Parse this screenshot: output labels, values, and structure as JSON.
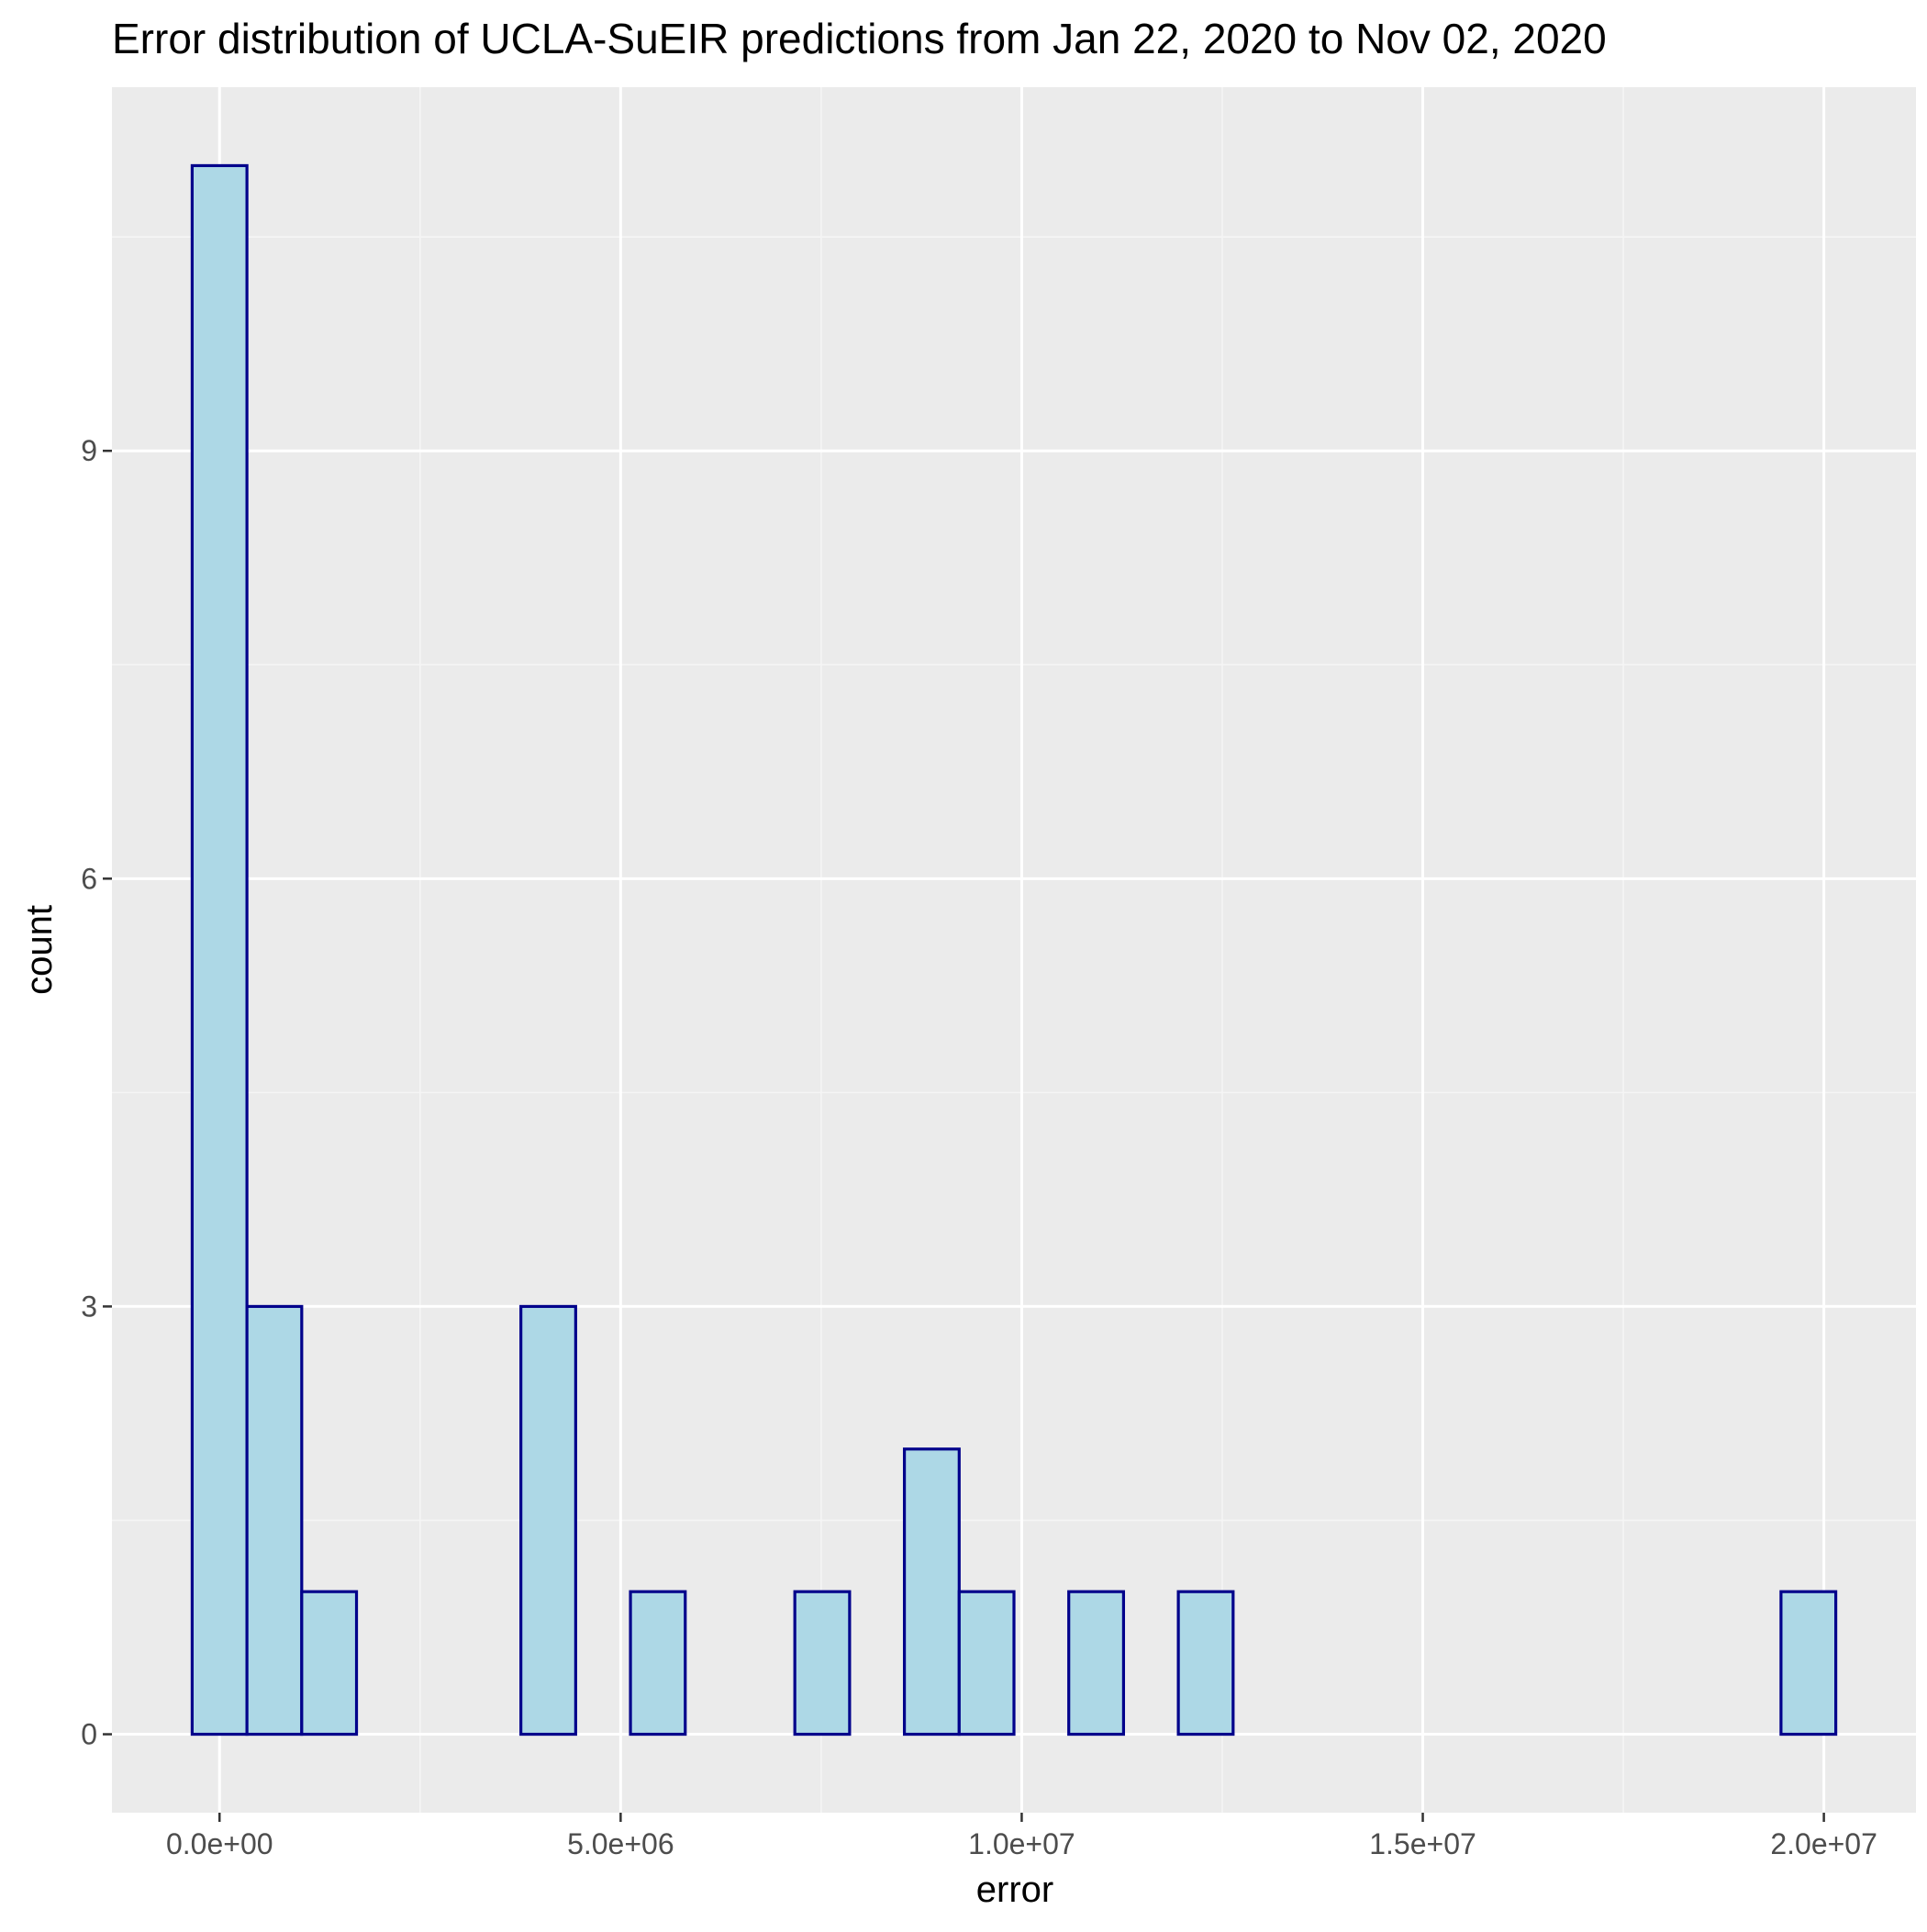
{
  "chart_data": {
    "type": "bar",
    "histogram": true,
    "title": "Error distribution of UCLA-SuEIR predictions from Jan 22, 2020 to Nov 02, 2020",
    "xlabel": "error",
    "ylabel": "count",
    "bin_width": 683000,
    "bins": [
      {
        "x_start": -341500,
        "x_end": 341500,
        "count": 11
      },
      {
        "x_start": 341500,
        "x_end": 1024500,
        "count": 3
      },
      {
        "x_start": 1024500,
        "x_end": 1707500,
        "count": 1
      },
      {
        "x_start": 1707500,
        "x_end": 2390500,
        "count": 0
      },
      {
        "x_start": 2390500,
        "x_end": 3073500,
        "count": 0
      },
      {
        "x_start": 3073500,
        "x_end": 3756500,
        "count": 0
      },
      {
        "x_start": 3756500,
        "x_end": 4439500,
        "count": 3
      },
      {
        "x_start": 4439500,
        "x_end": 5122500,
        "count": 0
      },
      {
        "x_start": 5122500,
        "x_end": 5805500,
        "count": 1
      },
      {
        "x_start": 5805500,
        "x_end": 6488500,
        "count": 0
      },
      {
        "x_start": 6488500,
        "x_end": 7171500,
        "count": 0
      },
      {
        "x_start": 7171500,
        "x_end": 7854500,
        "count": 1
      },
      {
        "x_start": 7854500,
        "x_end": 8537500,
        "count": 0
      },
      {
        "x_start": 8537500,
        "x_end": 9220500,
        "count": 2
      },
      {
        "x_start": 9220500,
        "x_end": 9903500,
        "count": 1
      },
      {
        "x_start": 9903500,
        "x_end": 10586500,
        "count": 0
      },
      {
        "x_start": 10586500,
        "x_end": 11269500,
        "count": 1
      },
      {
        "x_start": 11269500,
        "x_end": 11952500,
        "count": 0
      },
      {
        "x_start": 11952500,
        "x_end": 12635500,
        "count": 1
      },
      {
        "x_start": 12635500,
        "x_end": 13318500,
        "count": 0
      },
      {
        "x_start": 13318500,
        "x_end": 14001500,
        "count": 0
      },
      {
        "x_start": 14001500,
        "x_end": 14684500,
        "count": 0
      },
      {
        "x_start": 14684500,
        "x_end": 15367500,
        "count": 0
      },
      {
        "x_start": 15367500,
        "x_end": 16050500,
        "count": 0
      },
      {
        "x_start": 16050500,
        "x_end": 16733500,
        "count": 0
      },
      {
        "x_start": 16733500,
        "x_end": 17416500,
        "count": 0
      },
      {
        "x_start": 17416500,
        "x_end": 18099500,
        "count": 0
      },
      {
        "x_start": 18099500,
        "x_end": 18782500,
        "count": 0
      },
      {
        "x_start": 18782500,
        "x_end": 19465500,
        "count": 0
      },
      {
        "x_start": 19465500,
        "x_end": 20148500,
        "count": 1
      }
    ],
    "x_ticks": [
      {
        "value": 0,
        "label": "0.0e+00"
      },
      {
        "value": 5000000,
        "label": "5.0e+06"
      },
      {
        "value": 10000000,
        "label": "1.0e+07"
      },
      {
        "value": 15000000,
        "label": "1.5e+07"
      },
      {
        "value": 20000000,
        "label": "2.0e+07"
      }
    ],
    "y_ticks": [
      {
        "value": 0,
        "label": "0"
      },
      {
        "value": 3,
        "label": "3"
      },
      {
        "value": 6,
        "label": "6"
      },
      {
        "value": 9,
        "label": "9"
      }
    ],
    "xlim": [
      -1341400,
      21148400
    ],
    "ylim": [
      -0.55,
      11.55
    ],
    "grid": true,
    "legend": "none",
    "colors": {
      "panel_background": "#ebebeb",
      "grid_major": "#ffffff",
      "grid_minor": "#f5f5f5",
      "bar_fill": "#add8e6",
      "bar_outline": "#00008b",
      "tick_mark": "#333333"
    }
  }
}
